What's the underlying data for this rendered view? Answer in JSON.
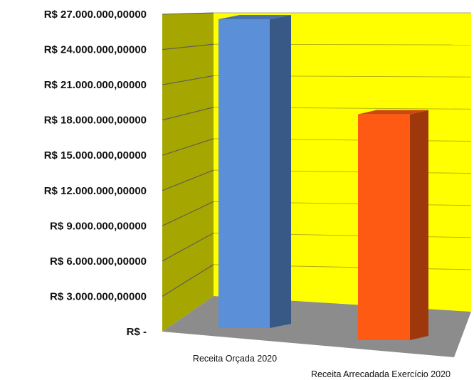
{
  "chart_data": {
    "type": "bar",
    "style": "3d-column",
    "categories": [
      "Receita Orçada 2020",
      "Receita Arrecadada Exercício 2020"
    ],
    "values": [
      27000000,
      19000000
    ],
    "ylim": [
      0,
      27000000
    ],
    "y_ticks": [
      0,
      3000000,
      6000000,
      9000000,
      12000000,
      15000000,
      18000000,
      21000000,
      24000000,
      27000000
    ],
    "y_tick_labels": [
      "R$ -",
      "R$ 3.000.000,00000",
      "R$ 6.000.000,00000",
      "R$ 9.000.000,00000",
      "R$ 12.000.000,00000",
      "R$ 15.000.000,00000",
      "R$ 18.000.000,00000",
      "R$ 21.000.000,00000",
      "R$ 24.000.000,00000",
      "R$ 27.000.000,00000"
    ],
    "grid": true,
    "legend": false,
    "colors": {
      "side_wall": "#a6a600",
      "back_wall": "#ffff00",
      "floor": "#8c8c8c",
      "gridline": "#5a5a5a",
      "bar_0": "#5b8fd8",
      "bar_1": "#ff5a14"
    }
  }
}
